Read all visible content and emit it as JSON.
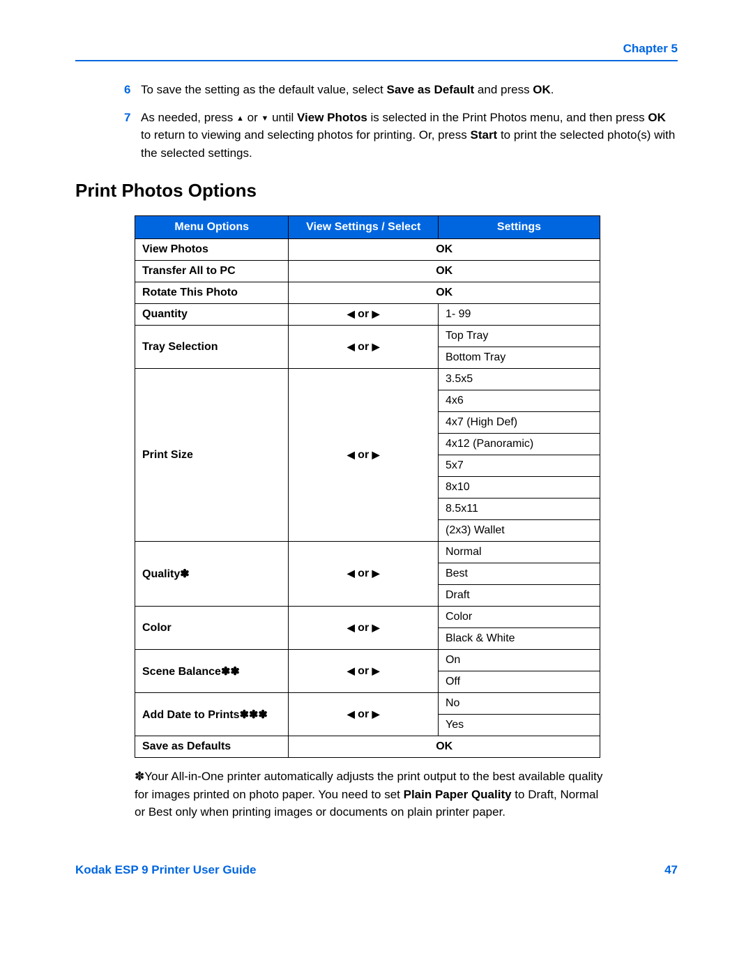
{
  "header": {
    "chapter": "Chapter 5"
  },
  "steps": [
    {
      "num": "6",
      "html": "To save the setting as the default value, select <b>Save as Default</b> and press <b>OK</b>."
    },
    {
      "num": "7",
      "html": "As needed, press <span class='tri'>▲</span> or <span class='tri'>▼</span> until <b>View Photos</b> is selected in the Print Photos menu, and then press <b>OK</b> to return to viewing and selecting photos for printing. Or, press <b>Start</b> to print the selected photo(s) with the selected settings."
    }
  ],
  "section_title": "Print Photos Options",
  "table": {
    "headers": [
      "Menu Options",
      "View Settings / Select",
      "Settings"
    ],
    "rows": [
      {
        "menu": "View Photos",
        "ctrl": "OK",
        "settings": [],
        "span": true
      },
      {
        "menu": "Transfer All to PC",
        "ctrl": "OK",
        "settings": [],
        "span": true
      },
      {
        "menu": "Rotate This Photo",
        "ctrl": "OK",
        "settings": [],
        "span": true
      },
      {
        "menu": "Quantity",
        "ctrl": "arrows",
        "settings": [
          "1- 99"
        ]
      },
      {
        "menu": "Tray Selection",
        "ctrl": "arrows",
        "settings": [
          "Top Tray",
          "Bottom Tray"
        ]
      },
      {
        "menu": "Print Size",
        "ctrl": "arrows",
        "settings": [
          "3.5x5",
          "4x6",
          "4x7 (High Def)",
          "4x12 (Panoramic)",
          "5x7",
          "8x10",
          "8.5x11",
          "(2x3) Wallet"
        ]
      },
      {
        "menu": "Quality",
        "asterisks": 1,
        "ctrl": "arrows",
        "settings": [
          "Normal",
          "Best",
          "Draft"
        ]
      },
      {
        "menu": "Color",
        "ctrl": "arrows",
        "settings": [
          "Color",
          "Black & White"
        ]
      },
      {
        "menu": "Scene Balance",
        "asterisks": 2,
        "ctrl": "arrows",
        "settings": [
          "On",
          "Off"
        ]
      },
      {
        "menu": "Add Date to Prints",
        "asterisks": 3,
        "ctrl": "arrows",
        "settings": [
          "No",
          "Yes"
        ]
      },
      {
        "menu": "Save as Defaults",
        "ctrl": "OK",
        "settings": [],
        "span": true
      }
    ]
  },
  "footnote": {
    "marker": "✽",
    "html": "Your All-in-One printer automatically adjusts the print output to the best available quality for images printed on photo paper. You need to set <b>Plain Paper Quality</b> to Draft, Normal or Best only when printing images or documents on plain printer paper."
  },
  "footer": {
    "guide": "Kodak ESP 9 Printer User Guide",
    "page": "47"
  },
  "colors": {
    "accent": "#0066e0",
    "bg": "#ffffff",
    "text": "#000000"
  },
  "glyphs": {
    "asterisk": "✽",
    "left": "◀",
    "right": "▶",
    "or": " or "
  }
}
